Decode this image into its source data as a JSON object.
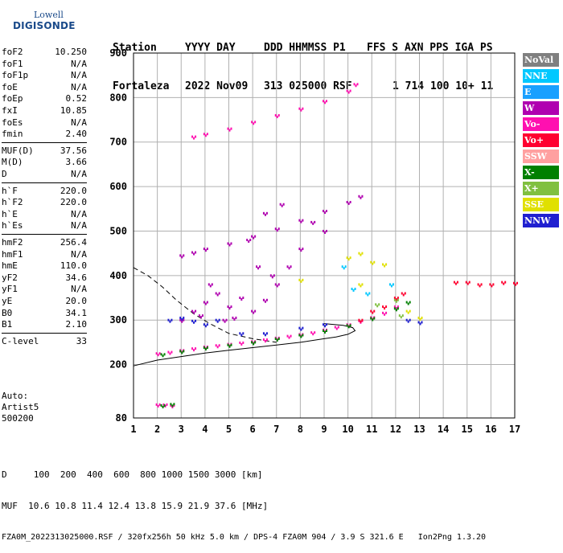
{
  "logo": {
    "line1": "Lowell",
    "line2": "DIGISONDE"
  },
  "header": {
    "row1": [
      "Station",
      "YYYY DAY",
      "DDD HHMMSS P1",
      "FFS S AXN PPS IGA PS"
    ],
    "row2": [
      "Fortaleza",
      "2022 Nov09",
      "313 025000 RSF",
      "1 714 100 10+ 11"
    ]
  },
  "params": [
    {
      "k": "foF2",
      "v": "10.250"
    },
    {
      "k": "foF1",
      "v": "N/A"
    },
    {
      "k": "foF1p",
      "v": "N/A"
    },
    {
      "k": "foE",
      "v": "N/A"
    },
    {
      "k": "foEp",
      "v": "0.52"
    },
    {
      "k": "fxI",
      "v": "10.85"
    },
    {
      "k": "foEs",
      "v": "N/A"
    },
    {
      "k": "fmin",
      "v": "2.40"
    },
    {
      "k": "MUF(D)",
      "v": "37.56"
    },
    {
      "k": "M(D)",
      "v": "3.66"
    },
    {
      "k": "D",
      "v": "N/A"
    },
    {
      "k": "h`F",
      "v": "220.0"
    },
    {
      "k": "h`F2",
      "v": "220.0"
    },
    {
      "k": "h`E",
      "v": "N/A"
    },
    {
      "k": "h`Es",
      "v": "N/A"
    },
    {
      "k": "hmF2",
      "v": "256.4"
    },
    {
      "k": "hmF1",
      "v": "N/A"
    },
    {
      "k": "hmE",
      "v": "110.0"
    },
    {
      "k": "yF2",
      "v": "34.6"
    },
    {
      "k": "yF1",
      "v": "N/A"
    },
    {
      "k": "yE",
      "v": "20.0"
    },
    {
      "k": "B0",
      "v": "34.1"
    },
    {
      "k": "B1",
      "v": "2.10"
    },
    {
      "k": "C-level",
      "v": "33"
    }
  ],
  "auto": [
    "Auto:",
    "Artist5",
    "500200"
  ],
  "legend": [
    {
      "label": "NoVal",
      "color": "#808080"
    },
    {
      "label": "NNE",
      "color": "#00c8ff"
    },
    {
      "label": "E",
      "color": "#19a0ff"
    },
    {
      "label": "W",
      "color": "#b000b0"
    },
    {
      "label": "Vo-",
      "color": "#ff10b0"
    },
    {
      "label": "Vo+",
      "color": "#ff0030"
    },
    {
      "label": "SSW",
      "color": "#ffa0a0"
    },
    {
      "label": "X-",
      "color": "#008000"
    },
    {
      "label": "X+",
      "color": "#80c040"
    },
    {
      "label": "SSE",
      "color": "#e0e000"
    },
    {
      "label": "NNW",
      "color": "#2020d0"
    }
  ],
  "footer": {
    "line1": "D     100  200  400  600  800 1000 1500 3000 [km]",
    "line2": "MUF  10.6 10.8 11.4 12.4 13.8 15.9 21.9 37.6 [MHz]",
    "line3": "FZA0M_2022313025000.RSF / 320fx256h 50 kHz 5.0 km / DPS-4 FZA0M 904 / 3.9 S 321.6 E   Ion2Png 1.3.20"
  },
  "chart_data": {
    "type": "scatter",
    "xlim": [
      1,
      17
    ],
    "ylim": [
      80,
      900
    ],
    "x_ticks": [
      1,
      2,
      3,
      4,
      5,
      6,
      7,
      8,
      9,
      10,
      11,
      12,
      13,
      14,
      15,
      16,
      17
    ],
    "y_ticks": [
      80,
      200,
      300,
      400,
      500,
      600,
      700,
      800,
      900
    ],
    "grid": true,
    "series": [
      {
        "color": "#ff10b0",
        "points": [
          [
            2.0,
            225
          ],
          [
            2.5,
            228
          ],
          [
            3.0,
            232
          ],
          [
            3.5,
            236
          ],
          [
            4.0,
            240
          ],
          [
            4.5,
            243
          ],
          [
            5.0,
            246
          ],
          [
            5.5,
            249
          ],
          [
            6.0,
            252
          ],
          [
            6.5,
            256
          ],
          [
            7.0,
            260
          ],
          [
            7.5,
            264
          ],
          [
            8.0,
            268
          ],
          [
            8.5,
            272
          ],
          [
            9.0,
            278
          ],
          [
            9.5,
            284
          ],
          [
            10.0,
            290
          ],
          [
            10.5,
            298
          ],
          [
            11.0,
            306
          ],
          [
            11.5,
            316
          ],
          [
            12.0,
            330
          ]
        ]
      },
      {
        "color": "#008000",
        "points": [
          [
            2.2,
            223
          ],
          [
            3.0,
            230
          ],
          [
            4.0,
            238
          ],
          [
            5.0,
            244
          ],
          [
            6.0,
            250
          ],
          [
            7.0,
            258
          ],
          [
            8.0,
            266
          ],
          [
            9.0,
            276
          ],
          [
            10.0,
            288
          ],
          [
            11.0,
            304
          ],
          [
            12.0,
            326
          ],
          [
            12.5,
            340
          ]
        ]
      },
      {
        "color": "#b000b0",
        "points": [
          [
            3.0,
            445
          ],
          [
            3.5,
            452
          ],
          [
            4.0,
            460
          ],
          [
            5.0,
            472
          ],
          [
            6.0,
            488
          ],
          [
            7.0,
            505
          ],
          [
            8.0,
            524
          ],
          [
            9.0,
            545
          ],
          [
            10.0,
            565
          ],
          [
            10.5,
            578
          ]
        ]
      },
      {
        "color": "#ff10b0",
        "points": [
          [
            3.5,
            712
          ],
          [
            4.0,
            718
          ],
          [
            5.0,
            730
          ],
          [
            6.0,
            745
          ],
          [
            7.0,
            760
          ],
          [
            8.0,
            775
          ],
          [
            9.0,
            792
          ],
          [
            10.0,
            815
          ],
          [
            10.3,
            830
          ]
        ]
      },
      {
        "color": "#b000b0",
        "points": [
          [
            3.0,
            300
          ],
          [
            3.5,
            320
          ],
          [
            4.0,
            340
          ],
          [
            4.5,
            360
          ],
          [
            5.0,
            330
          ],
          [
            5.5,
            350
          ],
          [
            4.2,
            380
          ],
          [
            4.8,
            300
          ],
          [
            3.8,
            310
          ],
          [
            5.2,
            305
          ],
          [
            6.0,
            320
          ],
          [
            6.5,
            345
          ],
          [
            7.0,
            380
          ],
          [
            7.5,
            420
          ],
          [
            8.0,
            460
          ],
          [
            8.5,
            520
          ],
          [
            9.0,
            500
          ],
          [
            6.2,
            420
          ],
          [
            6.8,
            400
          ],
          [
            5.8,
            480
          ],
          [
            6.5,
            540
          ],
          [
            7.2,
            560
          ]
        ]
      },
      {
        "color": "#2020d0",
        "points": [
          [
            2.5,
            300
          ],
          [
            3.0,
            305
          ],
          [
            3.5,
            298
          ],
          [
            4.0,
            290
          ],
          [
            4.5,
            300
          ],
          [
            5.5,
            270
          ],
          [
            6.5,
            270
          ],
          [
            8.0,
            282
          ],
          [
            9.0,
            290
          ],
          [
            12.5,
            300
          ],
          [
            13.0,
            295
          ]
        ]
      },
      {
        "color": "#e0e000",
        "points": [
          [
            10.0,
            440
          ],
          [
            10.5,
            450
          ],
          [
            11.0,
            430
          ],
          [
            11.5,
            425
          ],
          [
            8.0,
            390
          ],
          [
            10.5,
            380
          ],
          [
            12.5,
            320
          ],
          [
            13.0,
            305
          ]
        ]
      },
      {
        "color": "#ff0030",
        "points": [
          [
            10.5,
            300
          ],
          [
            11.0,
            320
          ],
          [
            11.5,
            330
          ],
          [
            12.0,
            350
          ],
          [
            12.3,
            360
          ],
          [
            14.5,
            385
          ],
          [
            15.0,
            385
          ],
          [
            15.5,
            380
          ],
          [
            16.0,
            380
          ],
          [
            16.5,
            385
          ],
          [
            17.0,
            383
          ]
        ]
      },
      {
        "color": "#00c8ff",
        "points": [
          [
            10.2,
            370
          ],
          [
            10.8,
            360
          ],
          [
            11.8,
            380
          ],
          [
            9.8,
            420
          ]
        ]
      },
      {
        "color": "#80c040",
        "points": [
          [
            11.2,
            335
          ],
          [
            12.0,
            345
          ],
          [
            12.2,
            310
          ]
        ]
      },
      {
        "color": "#ff10b0",
        "points": [
          [
            2.0,
            110
          ],
          [
            2.3,
            110
          ],
          [
            2.6,
            108
          ]
        ]
      },
      {
        "color": "#008000",
        "points": [
          [
            2.2,
            108
          ],
          [
            2.6,
            111
          ]
        ]
      }
    ],
    "curves": [
      {
        "style": "solid",
        "points": [
          [
            1.0,
            197
          ],
          [
            2.0,
            210
          ],
          [
            3.0,
            218
          ],
          [
            4.0,
            226
          ],
          [
            5.0,
            232
          ],
          [
            6.0,
            238
          ],
          [
            7.0,
            244
          ],
          [
            8.0,
            250
          ],
          [
            9.0,
            258
          ],
          [
            9.5,
            262
          ],
          [
            10.0,
            268
          ],
          [
            10.3,
            276
          ],
          [
            10.2,
            283
          ],
          [
            9.8,
            288
          ],
          [
            9.0,
            292
          ]
        ]
      },
      {
        "style": "dashed",
        "points": [
          [
            1.0,
            418
          ],
          [
            1.6,
            400
          ],
          [
            2.2,
            375
          ],
          [
            2.8,
            345
          ],
          [
            3.5,
            315
          ],
          [
            4.2,
            292
          ],
          [
            5.0,
            270
          ],
          [
            6.0,
            258
          ],
          [
            7.0,
            250
          ]
        ]
      }
    ]
  }
}
